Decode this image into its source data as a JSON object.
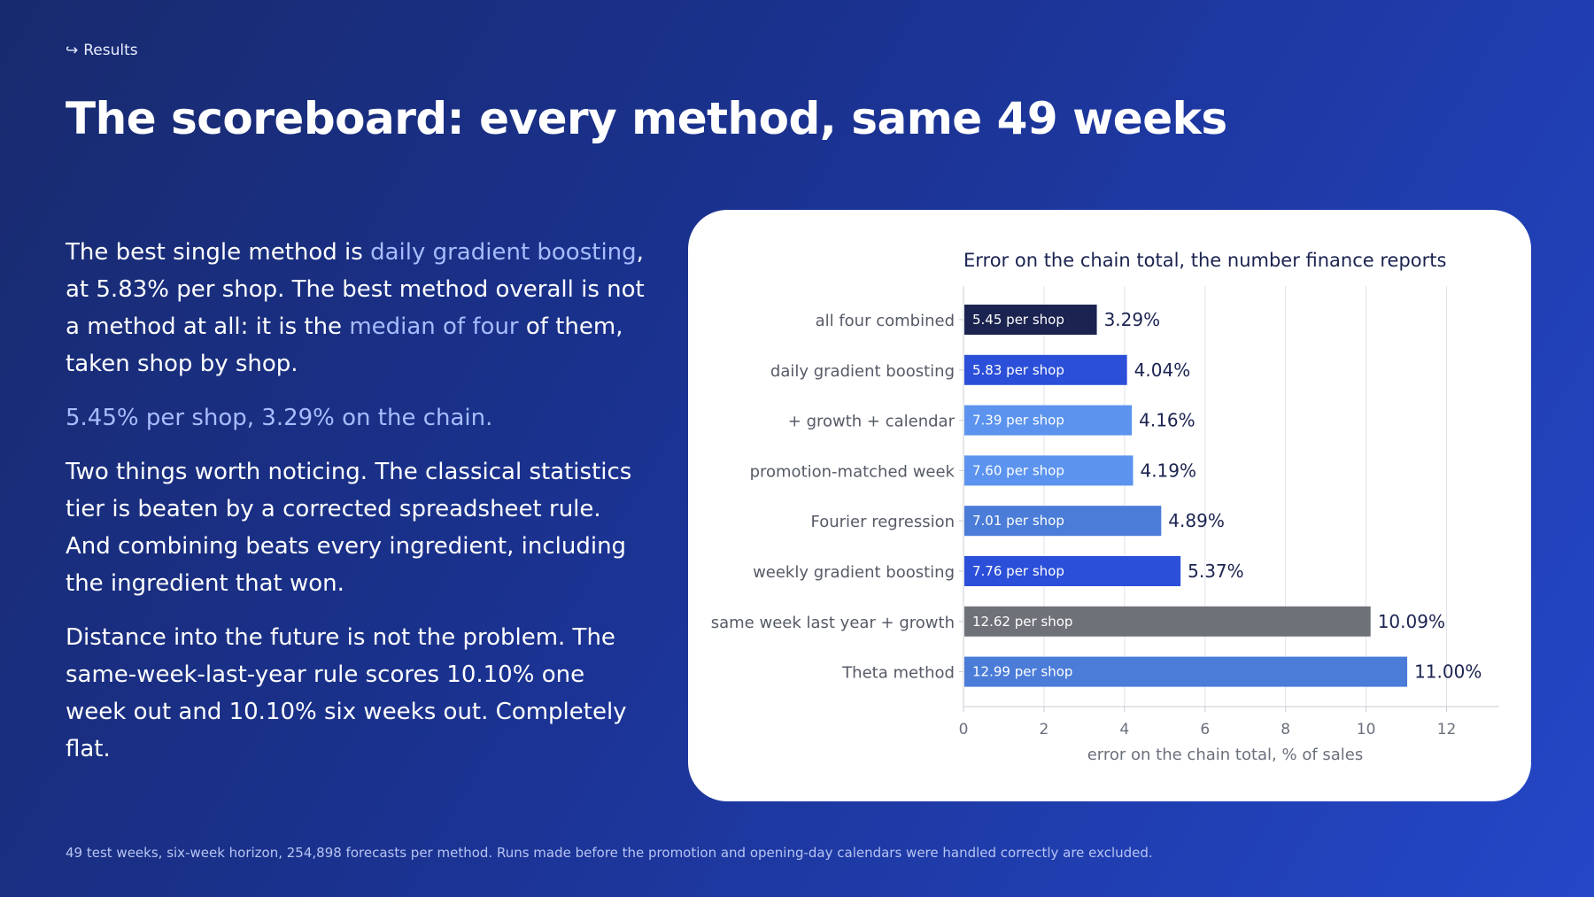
{
  "breadcrumb": {
    "icon": "return-arrow-icon",
    "label": "Results"
  },
  "title": "The scoreboard: every method, same 49 weeks",
  "body": {
    "p1": {
      "s1": "The best single method is ",
      "hl1": "daily gradient boosting",
      "s2": ", at 5.83% per shop. The best method overall is not a method at all: it is the ",
      "hl2": "median of four",
      "s3": " of them, taken shop by shop."
    },
    "callout": "5.45% per shop, 3.29% on the chain.",
    "p2": "Two things worth noticing. The classical statistics tier is beaten by a corrected spreadsheet rule. And combining beats every ingredient, including the ingredient that won.",
    "p3": "Distance into the future is not the problem. The same-week-last-year rule scores 10.10% one week out and 10.10% six weeks out. Completely flat."
  },
  "footnote": "49 test weeks, six-week horizon, 254,898 forecasts per method. Runs made before the promotion and opening-day calendars were handled correctly are excluded.",
  "colors": {
    "navy": "#1b2350",
    "blue": "#2b4fd8",
    "lightblue": "#5b93ee",
    "midblue": "#4a7cd8",
    "gray": "#6e7178"
  },
  "chart_data": {
    "type": "bar",
    "orientation": "horizontal",
    "title": "Error on the chain total, the number finance reports",
    "xlabel": "error on the chain total, % of sales",
    "ylabel": "",
    "xlim": [
      0,
      13
    ],
    "xticks": [
      0,
      2,
      4,
      6,
      8,
      10,
      12
    ],
    "grid": true,
    "categories": [
      "all four combined",
      "daily gradient boosting",
      "+ growth + calendar",
      "promotion-matched week",
      "Fourier regression",
      "weekly gradient boosting",
      "same week last year + growth",
      "Theta method"
    ],
    "values": [
      3.29,
      4.04,
      4.16,
      4.19,
      4.89,
      5.37,
      10.09,
      11.0
    ],
    "value_labels": [
      "3.29%",
      "4.04%",
      "4.16%",
      "4.19%",
      "4.89%",
      "5.37%",
      "10.09%",
      "11.00%"
    ],
    "inner_labels": [
      "5.45 per shop",
      "5.83 per shop",
      "7.39 per shop",
      "7.60 per shop",
      "7.01 per shop",
      "7.76 per shop",
      "12.62 per shop",
      "12.99 per shop"
    ],
    "bar_colors": [
      "#1b2350",
      "#2b4fd8",
      "#5b93ee",
      "#5b93ee",
      "#4a7cd8",
      "#2b4fd8",
      "#6e7178",
      "#4a7cd8"
    ]
  }
}
